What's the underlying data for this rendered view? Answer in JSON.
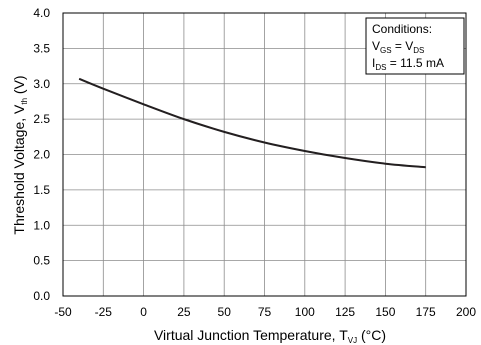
{
  "chart_data": {
    "type": "line",
    "xlabel": {
      "main": "Virtual Junction Temperature, T",
      "sub": "VJ",
      "tail": " (°C)"
    },
    "ylabel": {
      "main": "Threshold Voltage, V",
      "sub": "th",
      "tail": " (V)"
    },
    "xlim": [
      -50,
      200
    ],
    "ylim": [
      0,
      4.0
    ],
    "x_ticks": [
      "-50",
      "-25",
      "0",
      "25",
      "50",
      "75",
      "100",
      "125",
      "150",
      "175",
      "200"
    ],
    "y_ticks": [
      "0.0",
      "0.5",
      "1.0",
      "1.5",
      "2.0",
      "2.5",
      "3.0",
      "3.5",
      "4.0"
    ],
    "grid": true,
    "series": [
      {
        "color": "#231f20",
        "x": [
          -40,
          -25,
          0,
          25,
          50,
          75,
          100,
          125,
          150,
          175
        ],
        "y": [
          3.07,
          2.93,
          2.71,
          2.5,
          2.32,
          2.17,
          2.05,
          1.95,
          1.87,
          1.82
        ]
      }
    ],
    "conditions": {
      "title": "Conditions:",
      "line1": {
        "a": "V",
        "a_sub": "GS",
        "eq": " = V",
        "b_sub": "DS"
      },
      "line2": {
        "a": "I",
        "a_sub": "DS",
        "rest": " = 11.5 mA"
      }
    }
  }
}
